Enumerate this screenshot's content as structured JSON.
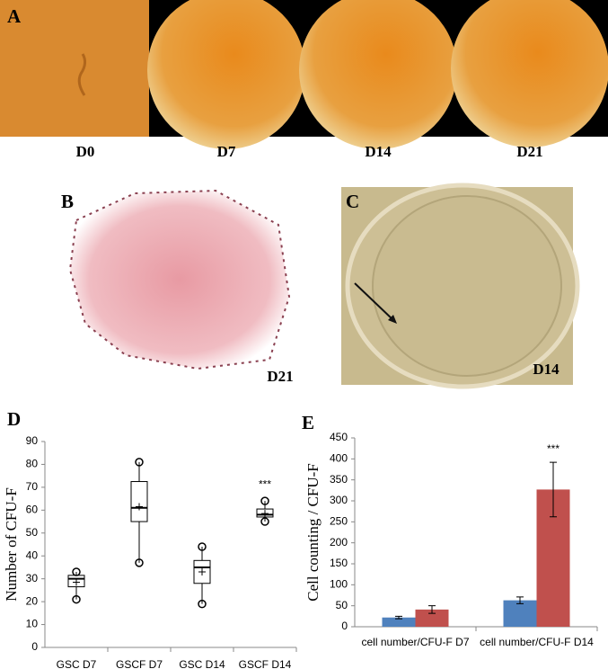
{
  "panels": {
    "A": {
      "label": "A",
      "captions": [
        "D0",
        "D7",
        "D14",
        "D21"
      ]
    },
    "B": {
      "label": "B",
      "caption": "D21"
    },
    "C": {
      "label": "C",
      "caption": "D14"
    }
  },
  "chart_data": [
    {
      "type": "box",
      "label": "D",
      "ylabel": "Number of CFU-F",
      "categories": [
        "GSC D7",
        "GSCF D7",
        "GSC D14",
        "GSCF D14"
      ],
      "boxes": [
        {
          "min": 21,
          "q1": 26.5,
          "median": 30,
          "q3": 31.5,
          "max": 33,
          "mean": 28.5
        },
        {
          "min": 37,
          "q1": 55,
          "median": 61,
          "q3": 72.5,
          "max": 81,
          "mean": 61.5
        },
        {
          "min": 19,
          "q1": 28,
          "median": 35,
          "q3": 38,
          "max": 44,
          "mean": 33
        },
        {
          "min": 55,
          "q1": 57,
          "median": 58,
          "q3": 60.5,
          "max": 64,
          "mean": 58.5
        }
      ],
      "significance": [
        null,
        null,
        null,
        "***"
      ],
      "ylim": [
        0,
        90
      ],
      "yticks": [
        0,
        10,
        20,
        30,
        40,
        50,
        60,
        70,
        80,
        90
      ]
    },
    {
      "type": "bar",
      "label": "E",
      "ylabel": "Cell counting / CFU-F",
      "categories": [
        "cell number/CFU-F D7",
        "cell number/CFU-F D14"
      ],
      "series": [
        {
          "color": "#4f81bd",
          "values": [
            22,
            63
          ],
          "errors": [
            3,
            8
          ]
        },
        {
          "color": "#c0504d",
          "values": [
            41,
            327
          ],
          "errors": [
            9,
            65
          ],
          "significance": [
            null,
            "***"
          ]
        }
      ],
      "ylim": [
        0,
        450
      ],
      "yticks": [
        0,
        50,
        100,
        150,
        200,
        250,
        300,
        350,
        400,
        450
      ]
    }
  ]
}
